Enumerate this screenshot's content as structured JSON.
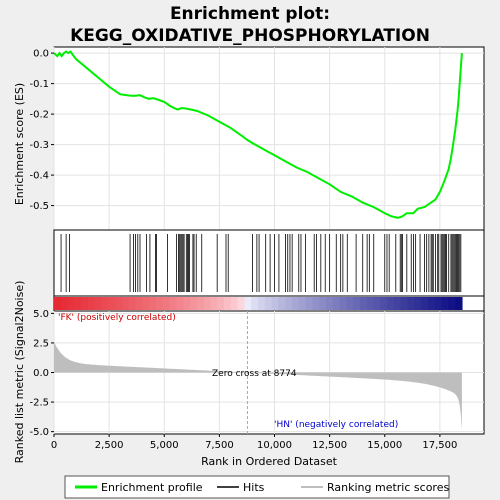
{
  "chart_data": {
    "type": "line",
    "title_line1": "Enrichment plot:",
    "title_line2": "KEGG_OXIDATIVE_PHOSPHORYLATION",
    "es_ylabel": "Enrichment score (ES)",
    "metric_ylabel": "Ranked list metric (Signal2Noise)",
    "xlabel": "Rank in Ordered Dataset",
    "xlim": [
      0,
      19500
    ],
    "es_ylim": [
      -0.58,
      0.02
    ],
    "metric_ylim": [
      -5.2,
      5.2
    ],
    "x_ticks": [
      "0",
      "2,500",
      "5,000",
      "7,500",
      "10,000",
      "12,500",
      "15,000",
      "17,500"
    ],
    "x_tick_values": [
      0,
      2500,
      5000,
      7500,
      10000,
      12500,
      15000,
      17500
    ],
    "es_ticks": [
      "0.0",
      "-0.1",
      "-0.2",
      "-0.3",
      "-0.4",
      "-0.5"
    ],
    "es_tick_values": [
      0.0,
      -0.1,
      -0.2,
      -0.3,
      -0.4,
      -0.5
    ],
    "metric_ticks": [
      "5.0",
      "2.5",
      "0.0",
      "-2.5",
      "-5.0"
    ],
    "metric_tick_values": [
      5.0,
      2.5,
      0.0,
      -2.5,
      -5.0
    ],
    "pos_label": "'FK' (positively correlated)",
    "neg_label": "'HN' (negatively correlated)",
    "zero_cross_label": "Zero cross at 8774",
    "zero_cross": 8774,
    "n_genes": 18500,
    "legend": [
      "Enrichment profile",
      "Hits",
      "Ranking metric scores"
    ],
    "colors": {
      "profile": "#00ee00",
      "hits": "#000000",
      "metric": "#bebebe",
      "pos_text": "#cc0000",
      "neg_text": "#0000cc"
    },
    "es_profile": {
      "x": [
        0,
        150,
        250,
        350,
        450,
        550,
        650,
        750,
        1000,
        1500,
        2000,
        2500,
        3000,
        3500,
        3700,
        3900,
        4100,
        4300,
        4500,
        4700,
        5000,
        5300,
        5600,
        5800,
        6000,
        6200,
        6500,
        7000,
        7500,
        8000,
        8500,
        8774,
        9000,
        9500,
        10000,
        10500,
        11000,
        11500,
        12000,
        12500,
        13000,
        13500,
        14000,
        14500,
        15000,
        15300,
        15600,
        15800,
        16000,
        16300,
        16500,
        16800,
        17000,
        17300,
        17500,
        17700,
        17900,
        18000,
        18100,
        18200,
        18300,
        18350,
        18400,
        18450,
        18500
      ],
      "y": [
        0.0,
        -0.01,
        0.0,
        -0.01,
        0.0,
        0.005,
        0.0,
        0.005,
        -0.02,
        -0.05,
        -0.08,
        -0.11,
        -0.135,
        -0.14,
        -0.14,
        -0.138,
        -0.145,
        -0.15,
        -0.148,
        -0.152,
        -0.16,
        -0.175,
        -0.185,
        -0.18,
        -0.182,
        -0.185,
        -0.19,
        -0.205,
        -0.225,
        -0.245,
        -0.27,
        -0.285,
        -0.295,
        -0.315,
        -0.335,
        -0.355,
        -0.375,
        -0.39,
        -0.41,
        -0.43,
        -0.455,
        -0.47,
        -0.49,
        -0.505,
        -0.525,
        -0.535,
        -0.54,
        -0.535,
        -0.525,
        -0.525,
        -0.51,
        -0.505,
        -0.495,
        -0.48,
        -0.455,
        -0.42,
        -0.38,
        -0.345,
        -0.3,
        -0.25,
        -0.19,
        -0.15,
        -0.1,
        -0.05,
        0.0
      ]
    },
    "hits": [
      320,
      550,
      700,
      3450,
      3600,
      3700,
      3800,
      3900,
      4200,
      4350,
      4600,
      4650,
      5150,
      5550,
      5650,
      5700,
      5750,
      5800,
      5850,
      5900,
      6000,
      6050,
      6100,
      6150,
      6300,
      6350,
      6450,
      6700,
      7400,
      7800,
      7900,
      9000,
      9200,
      9300,
      9600,
      9800,
      10000,
      10200,
      10500,
      10600,
      10700,
      10800,
      11100,
      11200,
      11400,
      11800,
      11900,
      12100,
      12300,
      12500,
      12800,
      13000,
      13100,
      13300,
      13700,
      14000,
      14200,
      14300,
      14500,
      15000,
      15100,
      15200,
      15500,
      15700,
      15750,
      15800,
      16000,
      16200,
      16300,
      16400,
      16600,
      16800,
      16900,
      17000,
      17100,
      17150,
      17200,
      17300,
      17400,
      17450,
      17550,
      17600,
      17650,
      17700,
      17750,
      17800,
      17900,
      18000,
      18050,
      18100,
      18150,
      18200,
      18250,
      18300,
      18350,
      18400,
      18450
    ]
  }
}
